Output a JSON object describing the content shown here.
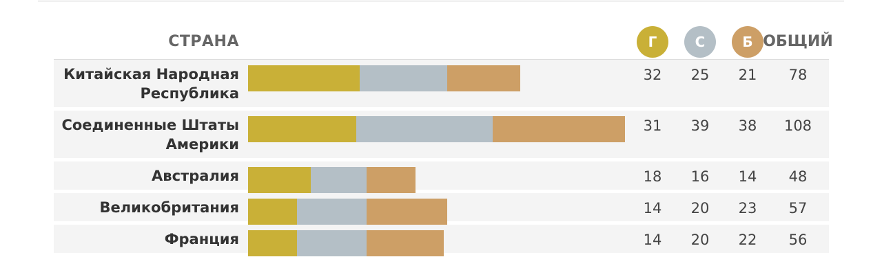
{
  "chart_data": {
    "type": "bar",
    "orientation": "horizontal",
    "stacked": true,
    "country_header": "СТРАНА",
    "total_header": "ОБЩИЙ",
    "categories": [
      "Китайская Народная Республика",
      "Соединенные Штаты Америки",
      "Австралия",
      "Великобритания",
      "Франция"
    ],
    "series": [
      {
        "name": "Г",
        "color": "#c9b037",
        "values": [
          32,
          31,
          18,
          14,
          14
        ]
      },
      {
        "name": "С",
        "color": "#b4bfc6",
        "values": [
          25,
          39,
          16,
          20,
          20
        ]
      },
      {
        "name": "Б",
        "color": "#cd9f66",
        "values": [
          21,
          38,
          14,
          23,
          22
        ]
      }
    ],
    "totals": [
      78,
      108,
      48,
      57,
      56
    ],
    "row_color": "#f4f4f4"
  }
}
